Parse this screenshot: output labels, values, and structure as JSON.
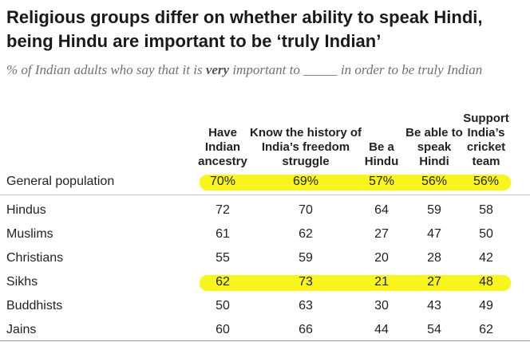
{
  "title": "Religious groups differ on whether ability to speak Hindi, being Hindu are important to be ‘truly Indian’",
  "subtitle": {
    "before": "% of Indian adults who say that it is ",
    "emphasis": "very",
    "after": " important to _____ in order to be truly Indian"
  },
  "highlight_color": "#f8f51c",
  "chart_data": {
    "type": "table",
    "columns": [
      "Have Indian ancestry",
      "Know the history of India’s freedom struggle",
      "Be a Hindu",
      "Be able to speak Hindi",
      "Support India’s cricket team"
    ],
    "rows": [
      {
        "label": "General population",
        "values": [
          "70%",
          "69%",
          "57%",
          "56%",
          "56%"
        ],
        "highlighted": true
      },
      {
        "label": "Hindus",
        "values": [
          "72",
          "70",
          "64",
          "59",
          "58"
        ],
        "highlighted": false
      },
      {
        "label": "Muslims",
        "values": [
          "61",
          "62",
          "27",
          "47",
          "50"
        ],
        "highlighted": false
      },
      {
        "label": "Christians",
        "values": [
          "55",
          "59",
          "20",
          "28",
          "42"
        ],
        "highlighted": false
      },
      {
        "label": "Sikhs",
        "values": [
          "62",
          "73",
          "21",
          "27",
          "48"
        ],
        "highlighted": true
      },
      {
        "label": "Buddhists",
        "values": [
          "50",
          "63",
          "30",
          "43",
          "49"
        ],
        "highlighted": false
      },
      {
        "label": "Jains",
        "values": [
          "60",
          "66",
          "44",
          "54",
          "62"
        ],
        "highlighted": false
      }
    ]
  }
}
